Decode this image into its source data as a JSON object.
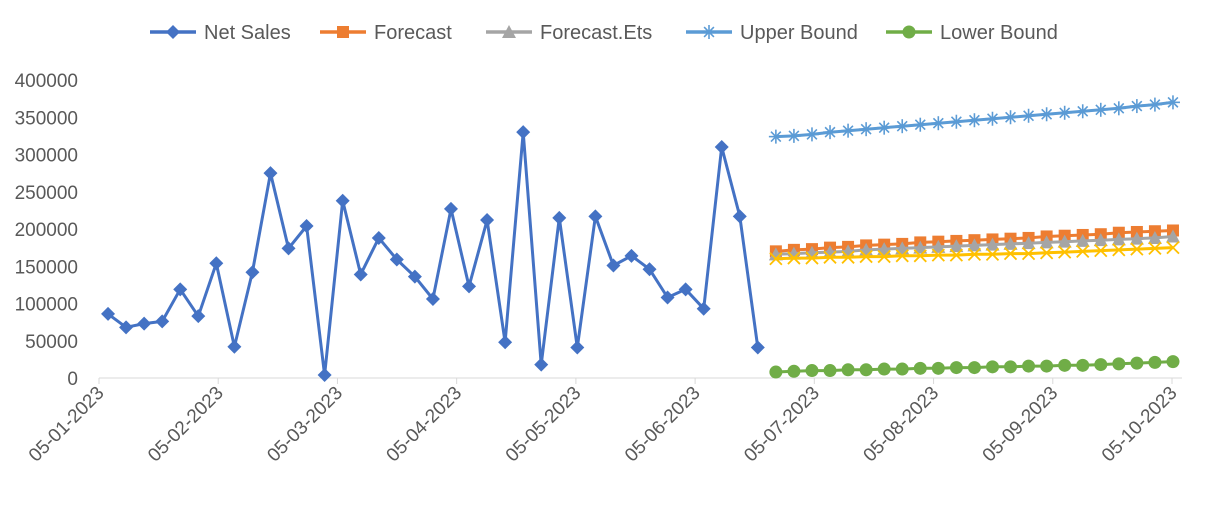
{
  "chart_data": {
    "type": "line",
    "title": "",
    "xlabel": "",
    "ylabel": "",
    "ylim": [
      0,
      400000
    ],
    "y_ticks": [
      0,
      50000,
      100000,
      150000,
      200000,
      250000,
      300000,
      350000,
      400000
    ],
    "y_tick_labels": [
      "0",
      "50000",
      "100000",
      "150000",
      "200000",
      "250000",
      "300000",
      "350000",
      "400000"
    ],
    "x_tick_labels": [
      "05-01-2023",
      "05-02-2023",
      "05-03-2023",
      "05-04-2023",
      "05-05-2023",
      "05-06-2023",
      "05-07-2023",
      "05-08-2023",
      "05-09-2023",
      "05-10-2023"
    ],
    "gridlines": false,
    "legend_position": "top",
    "legend": [
      {
        "name": "Net Sales",
        "color": "#4472C4",
        "marker": "diamond"
      },
      {
        "name": "Forecast",
        "color": "#ED7D31",
        "marker": "square"
      },
      {
        "name": "Forecast.Ets",
        "color": "#A5A5A5",
        "marker": "triangle"
      },
      {
        "name": "Upper Bound",
        "color": "#5B9BD5",
        "marker": "asterisk"
      },
      {
        "name": "Lower Bound",
        "color": "#70AD47",
        "marker": "circle"
      }
    ],
    "series": [
      {
        "name": "Net Sales",
        "color": "#4472C4",
        "marker": "diamond",
        "start": 0,
        "values": [
          86000,
          68000,
          73000,
          76000,
          119000,
          83000,
          154000,
          42000,
          142000,
          275000,
          174000,
          204000,
          4000,
          238000,
          139000,
          188000,
          159000,
          136000,
          106000,
          227000,
          123000,
          212000,
          48000,
          330000,
          18000,
          215000,
          41000,
          217000,
          151000,
          164000,
          146000,
          108000,
          119000,
          93000,
          310000,
          217000,
          41000
        ]
      },
      {
        "name": "Forecast",
        "color": "#ED7D31",
        "marker": "square",
        "start": 37,
        "values": [
          170000,
          172000,
          173000,
          175000,
          176000,
          178000,
          179000,
          180000,
          182000,
          183000,
          184000,
          185000,
          186000,
          187000,
          188000,
          190000,
          191000,
          192000,
          193000,
          195000,
          196000,
          197000,
          198000
        ]
      },
      {
        "name": "Forecast.Ets",
        "color": "#A5A5A5",
        "marker": "triangle",
        "start": 37,
        "values": [
          166000,
          167000,
          168000,
          169000,
          170000,
          172000,
          173000,
          174000,
          175000,
          176000,
          177000,
          178000,
          179000,
          180000,
          181000,
          182000,
          183000,
          184000,
          185000,
          186000,
          187000,
          188000,
          190000
        ]
      },
      {
        "name": "",
        "color": "#FFC000",
        "marker": "x",
        "start": 37,
        "values": [
          160000,
          161000,
          161000,
          162000,
          162000,
          163000,
          163000,
          164000,
          164000,
          165000,
          165000,
          166000,
          166000,
          167000,
          167000,
          168000,
          169000,
          170000,
          171000,
          172000,
          173000,
          174000,
          175000
        ]
      },
      {
        "name": "Upper Bound",
        "color": "#5B9BD5",
        "marker": "asterisk",
        "start": 37,
        "values": [
          324000,
          325000,
          327000,
          330000,
          332000,
          334000,
          336000,
          338000,
          340000,
          342000,
          344000,
          346000,
          348000,
          350000,
          352000,
          354000,
          356000,
          358000,
          360000,
          362000,
          365000,
          367000,
          370000
        ]
      },
      {
        "name": "Lower Bound",
        "color": "#70AD47",
        "marker": "circle",
        "start": 37,
        "values": [
          8000,
          9000,
          10000,
          10000,
          11000,
          11000,
          12000,
          12000,
          13000,
          13000,
          14000,
          14000,
          15000,
          15000,
          16000,
          16000,
          17000,
          17000,
          18000,
          19000,
          20000,
          21000,
          22000
        ]
      }
    ]
  }
}
